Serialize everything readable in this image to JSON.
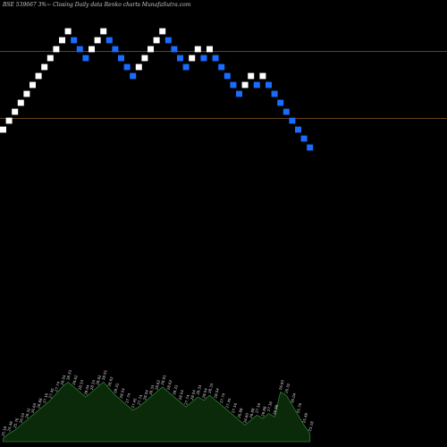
{
  "title": "BSE 539667 3%~  Closing Daily data  Renko  charts MunafaSutra.com",
  "colors": {
    "background": "#000000",
    "up": "#ffffff",
    "down": "#1a6cff",
    "reference_line": "#8a5a2b",
    "volume_fill": "#0a2a0a",
    "volume_stroke": "#2e7d32"
  },
  "chart_data": [
    {
      "type": "renko",
      "brick_size_pct": 3,
      "ylim": [
        0,
        100
      ],
      "reference_lines": [
        85,
        55
      ],
      "bricks": [
        {
          "dir": "up",
          "y": 50
        },
        {
          "dir": "up",
          "y": 54
        },
        {
          "dir": "up",
          "y": 58
        },
        {
          "dir": "up",
          "y": 62
        },
        {
          "dir": "up",
          "y": 66
        },
        {
          "dir": "up",
          "y": 70
        },
        {
          "dir": "up",
          "y": 74
        },
        {
          "dir": "up",
          "y": 78
        },
        {
          "dir": "up",
          "y": 82
        },
        {
          "dir": "up",
          "y": 86
        },
        {
          "dir": "up",
          "y": 90
        },
        {
          "dir": "up",
          "y": 94
        },
        {
          "dir": "down",
          "y": 90
        },
        {
          "dir": "down",
          "y": 86
        },
        {
          "dir": "down",
          "y": 82
        },
        {
          "dir": "up",
          "y": 86
        },
        {
          "dir": "up",
          "y": 90
        },
        {
          "dir": "up",
          "y": 94
        },
        {
          "dir": "down",
          "y": 90
        },
        {
          "dir": "down",
          "y": 86
        },
        {
          "dir": "down",
          "y": 82
        },
        {
          "dir": "down",
          "y": 78
        },
        {
          "dir": "down",
          "y": 74
        },
        {
          "dir": "up",
          "y": 78
        },
        {
          "dir": "up",
          "y": 82
        },
        {
          "dir": "up",
          "y": 86
        },
        {
          "dir": "up",
          "y": 90
        },
        {
          "dir": "up",
          "y": 94
        },
        {
          "dir": "down",
          "y": 90
        },
        {
          "dir": "down",
          "y": 86
        },
        {
          "dir": "down",
          "y": 82
        },
        {
          "dir": "down",
          "y": 78
        },
        {
          "dir": "up",
          "y": 82
        },
        {
          "dir": "up",
          "y": 86
        },
        {
          "dir": "down",
          "y": 82
        },
        {
          "dir": "up",
          "y": 86
        },
        {
          "dir": "down",
          "y": 82
        },
        {
          "dir": "down",
          "y": 78
        },
        {
          "dir": "down",
          "y": 74
        },
        {
          "dir": "down",
          "y": 70
        },
        {
          "dir": "down",
          "y": 66
        },
        {
          "dir": "up",
          "y": 70
        },
        {
          "dir": "up",
          "y": 74
        },
        {
          "dir": "down",
          "y": 70
        },
        {
          "dir": "up",
          "y": 74
        },
        {
          "dir": "down",
          "y": 70
        },
        {
          "dir": "down",
          "y": 66
        },
        {
          "dir": "down",
          "y": 62
        },
        {
          "dir": "down",
          "y": 58
        },
        {
          "dir": "down",
          "y": 54
        },
        {
          "dir": "down",
          "y": 50
        },
        {
          "dir": "down",
          "y": 46
        },
        {
          "dir": "down",
          "y": 42
        }
      ]
    },
    {
      "type": "area",
      "name": "volume",
      "x": [
        1,
        2,
        3,
        4,
        5,
        6,
        7,
        8,
        9,
        10,
        11,
        12,
        13,
        14,
        15,
        16,
        17,
        18,
        19,
        20,
        21,
        22,
        23,
        24,
        25,
        26,
        27,
        28,
        29,
        30,
        31,
        32,
        33,
        34,
        35,
        36,
        37,
        38,
        39,
        40,
        41,
        42,
        43,
        44,
        45,
        46,
        47,
        48,
        49,
        50,
        51,
        52,
        53
      ],
      "values": [
        2,
        5,
        7,
        10,
        13,
        16,
        19,
        22,
        25,
        29,
        33,
        36,
        33,
        30,
        27,
        30,
        33,
        36,
        32,
        28,
        25,
        22,
        19,
        21,
        24,
        27,
        30,
        33,
        30,
        27,
        24,
        21,
        24,
        27,
        25,
        28,
        25,
        22,
        19,
        16,
        13,
        10,
        13,
        16,
        14,
        17,
        15,
        30,
        28,
        22,
        16,
        10,
        5
      ],
      "ylim": [
        0,
        40
      ],
      "labels": [
        "25.18",
        "25.48",
        "25.76",
        "26.04",
        "26.32",
        "26.60",
        "26.88",
        "27.16",
        "27.45",
        "27.74",
        "28.04",
        "28.33",
        "28.62",
        "28.33",
        "28.04",
        "28.33",
        "28.62",
        "28.91",
        "28.62",
        "28.33",
        "28.04",
        "27.74",
        "27.45",
        "27.74",
        "28.04",
        "28.33",
        "28.62",
        "28.91",
        "28.62",
        "28.33",
        "28.04",
        "27.74",
        "28.04",
        "28.33",
        "28.04",
        "28.33",
        "28.04",
        "27.74",
        "27.45",
        "27.16",
        "26.88",
        "26.60",
        "26.88",
        "27.16",
        "26.88",
        "27.16",
        "26.88",
        "26.60",
        "26.32",
        "26.04",
        "25.76",
        "25.48",
        "25.18"
      ]
    }
  ]
}
